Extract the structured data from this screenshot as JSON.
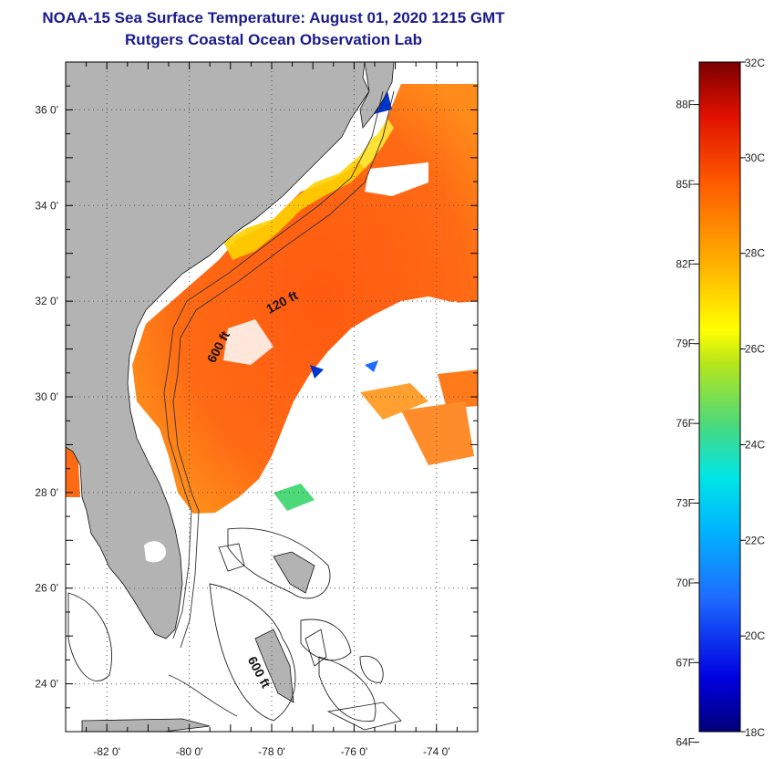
{
  "title": "NOAA-15 Sea Surface Temperature:  August 01, 2020 1215 GMT",
  "subtitle": "Rutgers Coastal Ocean Observation Lab",
  "map": {
    "lon_range": [
      -83.0,
      -73.0
    ],
    "lat_range": [
      23.0,
      37.0
    ],
    "lat_ticks": [
      {
        "value": 36,
        "label": "36 0'"
      },
      {
        "value": 34,
        "label": "34 0'"
      },
      {
        "value": 32,
        "label": "32 0'"
      },
      {
        "value": 30,
        "label": "30 0'"
      },
      {
        "value": 28,
        "label": "28 0'"
      },
      {
        "value": 26,
        "label": "26 0'"
      },
      {
        "value": 24,
        "label": "24 0'"
      }
    ],
    "lon_ticks": [
      {
        "value": -82,
        "label": "-82 0'"
      },
      {
        "value": -80,
        "label": "-80 0'"
      },
      {
        "value": -78,
        "label": "-78 0'"
      },
      {
        "value": -76,
        "label": "-76 0'"
      },
      {
        "value": -74,
        "label": "-74 0'"
      }
    ],
    "contour_labels": [
      {
        "text": "120 ft",
        "lon": -77.7,
        "lat": 31.9
      },
      {
        "text": "600 ft",
        "lon": -79.2,
        "lat": 31.0
      },
      {
        "text": "600 ft",
        "lon": -78.4,
        "lat": 24.2
      }
    ],
    "colors": {
      "land": "#b3b3b3",
      "water_nodata": "#ffffff",
      "grid": "#555555"
    }
  },
  "colorbar": {
    "range_c": [
      18,
      32
    ],
    "celsius_labels": [
      "32C",
      "30C",
      "28C",
      "26C",
      "24C",
      "22C",
      "20C",
      "18C"
    ],
    "fahrenheit_labels": [
      "88F",
      "85F",
      "82F",
      "79F",
      "76F",
      "73F",
      "70F",
      "67F",
      "64F"
    ],
    "fahrenheit_values": [
      88,
      85,
      82,
      79,
      76,
      73,
      70,
      67,
      64
    ]
  }
}
